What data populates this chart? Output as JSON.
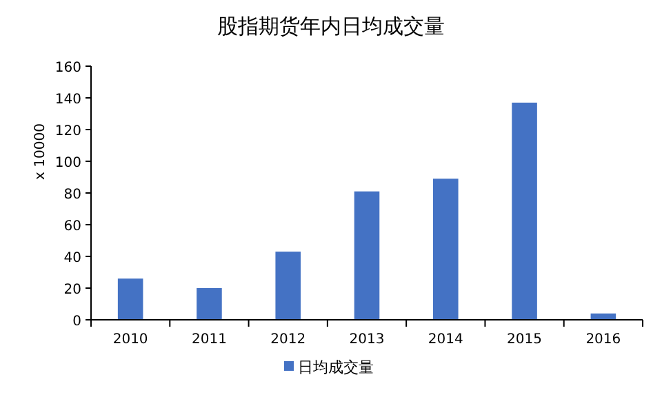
{
  "chart_data": {
    "type": "bar",
    "title": "股指期货年内日均成交量",
    "ylabel": "x 10000",
    "categories": [
      "2010",
      "2011",
      "2012",
      "2013",
      "2014",
      "2015",
      "2016"
    ],
    "series": [
      {
        "name": "日均成交量",
        "color": "#4472c4",
        "values": [
          26,
          20,
          43,
          81,
          89,
          137,
          4
        ]
      }
    ],
    "ylim": [
      0,
      160
    ],
    "yticks": [
      0,
      20,
      40,
      60,
      80,
      100,
      120,
      140,
      160
    ],
    "grid": false,
    "legend": "bottom"
  }
}
